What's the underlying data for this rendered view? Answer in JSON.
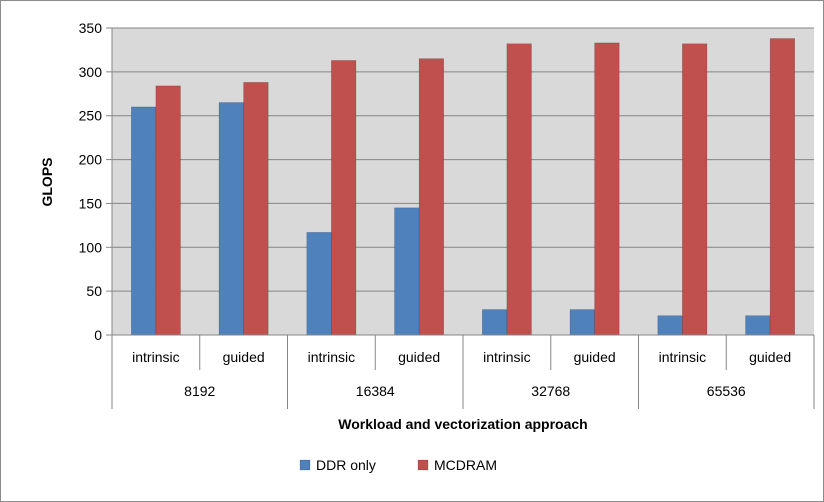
{
  "chart_data": {
    "type": "bar",
    "title": "",
    "xlabel": "Workload and vectorization approach",
    "ylabel": "GLOPS",
    "ylim": [
      0,
      350
    ],
    "yticks": [
      0,
      50,
      100,
      150,
      200,
      250,
      300,
      350
    ],
    "grid": true,
    "legend_position": "bottom",
    "groups": [
      {
        "label": "8192",
        "categories": [
          "intrinsic",
          "guided"
        ]
      },
      {
        "label": "16384",
        "categories": [
          "intrinsic",
          "guided"
        ]
      },
      {
        "label": "32768",
        "categories": [
          "intrinsic",
          "guided"
        ]
      },
      {
        "label": "65536",
        "categories": [
          "intrinsic",
          "guided"
        ]
      }
    ],
    "series": [
      {
        "name": "DDR only",
        "color": "#4F81BD",
        "values": [
          260,
          265,
          117,
          145,
          29,
          29,
          22,
          22
        ]
      },
      {
        "name": "MCDRAM",
        "color": "#C0504D",
        "values": [
          284,
          288,
          313,
          315,
          332,
          333,
          332,
          338
        ]
      }
    ],
    "plot_background": "#D9D9D9"
  }
}
